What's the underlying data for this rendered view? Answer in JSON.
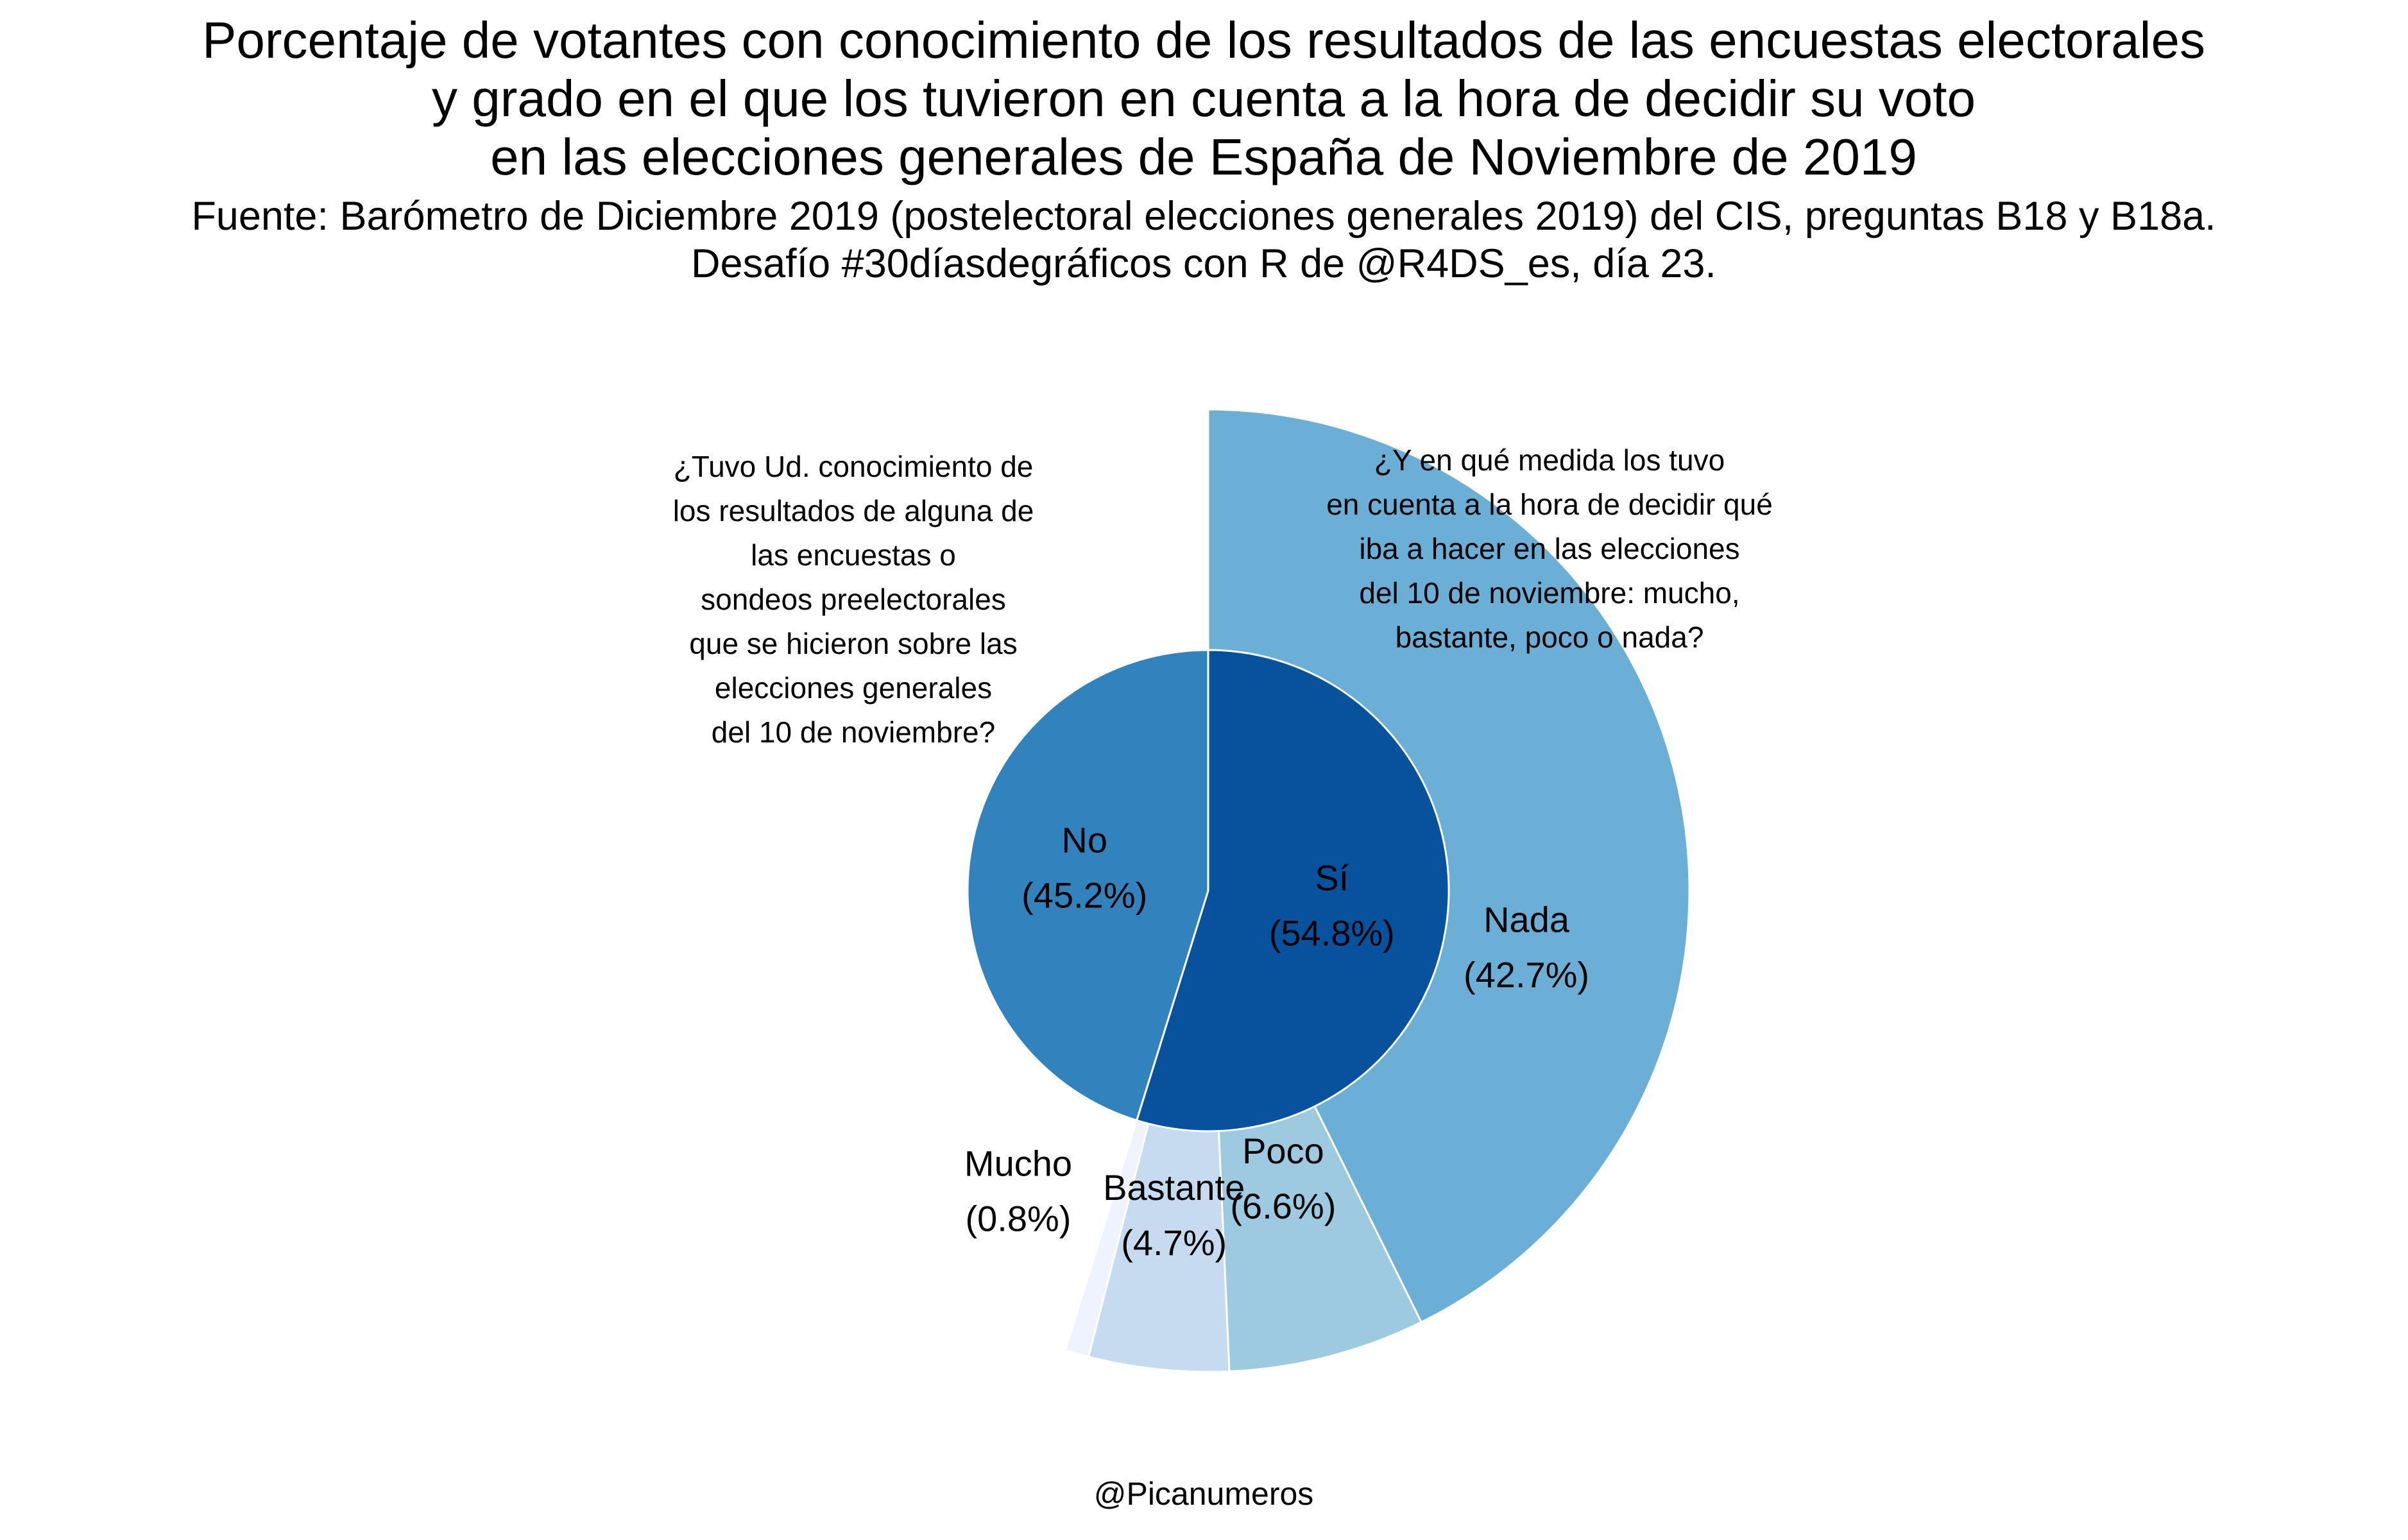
{
  "chart_data": {
    "type": "pie",
    "title": [
      "Porcentaje de votantes con conocimiento de los resultados de las encuestas electorales",
      "y grado en el que los tuvieron en cuenta a la hora de decidir su voto",
      "en las elecciones generales de España de Noviembre de 2019"
    ],
    "subtitle": [
      "Fuente: Barómetro de Diciembre 2019 (postelectoral elecciones generales 2019) del CIS, preguntas B18 y B18a.",
      "Desafío #30díasdegráficos con R de @R4DS_es, día 23."
    ],
    "caption": "@Picanumeros",
    "inner": {
      "question": [
        "¿Tuvo Ud. conocimiento de",
        "los resultados de alguna de",
        "las encuestas o",
        "sondeos preelectorales",
        "que se hicieron sobre las",
        "elecciones generales",
        "del 10 de noviembre?"
      ],
      "slices": [
        {
          "label": "Sí",
          "value": 54.8,
          "value_label": "(54.8%)",
          "color": "#08519c"
        },
        {
          "label": "No",
          "value": 45.2,
          "value_label": "(45.2%)",
          "color": "#3182bd"
        }
      ]
    },
    "outer": {
      "question": [
        "¿Y en qué medida los tuvo",
        "en cuenta a la hora de decidir qué",
        "iba a hacer en las elecciones",
        "del 10 de noviembre: mucho,",
        "bastante, poco o nada?"
      ],
      "parent": "Sí",
      "slices": [
        {
          "label": "Nada",
          "value": 42.7,
          "value_label": "(42.7%)",
          "color": "#6baed6"
        },
        {
          "label": "Poco",
          "value": 6.6,
          "value_label": "(6.6%)",
          "color": "#9ecae1"
        },
        {
          "label": "Bastante",
          "value": 4.7,
          "value_label": "(4.7%)",
          "color": "#c6dbef"
        },
        {
          "label": "Mucho",
          "value": 0.8,
          "value_label": "(0.8%)",
          "color": "#eff3ff"
        }
      ]
    }
  }
}
